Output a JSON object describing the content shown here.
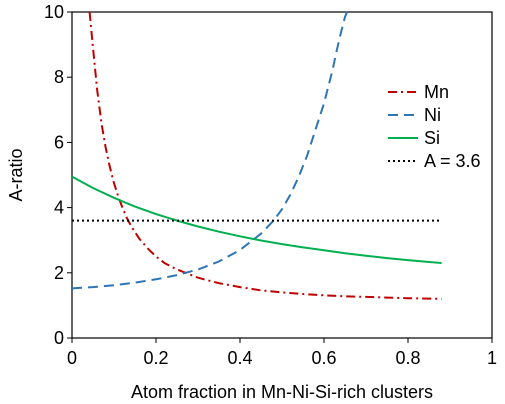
{
  "chart_data": {
    "type": "line",
    "title": "",
    "xlabel": "Atom fraction in Mn-Ni-Si-rich clusters",
    "ylabel": "A-ratio",
    "xlim": [
      0,
      1
    ],
    "ylim": [
      0,
      10
    ],
    "xticks": [
      0,
      0.2,
      0.4,
      0.6,
      0.8,
      1
    ],
    "xtick_labels": [
      "0",
      "0.2",
      "0.4",
      "0.6",
      "0.8",
      "1"
    ],
    "yticks": [
      0,
      2,
      4,
      6,
      8,
      10
    ],
    "ytick_labels": [
      "0",
      "2",
      "4",
      "6",
      "8",
      "10"
    ],
    "grid": false,
    "legend_position": "right",
    "series": [
      {
        "name": "Mn",
        "color": "#C00000",
        "dash": "dash-dot",
        "x": [
          0.042,
          0.05,
          0.06,
          0.07,
          0.08,
          0.09,
          0.1,
          0.11,
          0.12,
          0.13,
          0.14,
          0.16,
          0.18,
          0.2,
          0.22,
          0.25,
          0.28,
          0.3,
          0.35,
          0.4,
          0.45,
          0.5,
          0.55,
          0.6,
          0.65,
          0.7,
          0.75,
          0.8,
          0.85,
          0.88
        ],
        "y": [
          10.0,
          8.9,
          7.6,
          6.6,
          5.85,
          5.25,
          4.75,
          4.35,
          4.0,
          3.7,
          3.45,
          3.05,
          2.75,
          2.5,
          2.3,
          2.1,
          1.95,
          1.85,
          1.68,
          1.56,
          1.46,
          1.4,
          1.35,
          1.31,
          1.28,
          1.26,
          1.24,
          1.22,
          1.21,
          1.2
        ]
      },
      {
        "name": "Ni",
        "color": "#2E75B6",
        "dash": "dash",
        "x": [
          0.0,
          0.05,
          0.1,
          0.15,
          0.2,
          0.25,
          0.3,
          0.35,
          0.4,
          0.45,
          0.48,
          0.5,
          0.52,
          0.54,
          0.56,
          0.58,
          0.6,
          0.62,
          0.63,
          0.64,
          0.65,
          0.655
        ],
        "y": [
          1.52,
          1.56,
          1.62,
          1.7,
          1.8,
          1.93,
          2.1,
          2.35,
          2.7,
          3.2,
          3.6,
          3.95,
          4.4,
          4.95,
          5.6,
          6.4,
          7.2,
          8.2,
          8.8,
          9.35,
          9.85,
          10.0
        ]
      },
      {
        "name": "Si",
        "color": "#00B050",
        "dash": "solid",
        "x": [
          0.0,
          0.05,
          0.1,
          0.15,
          0.2,
          0.25,
          0.3,
          0.35,
          0.4,
          0.45,
          0.5,
          0.55,
          0.6,
          0.65,
          0.7,
          0.75,
          0.8,
          0.85,
          0.88
        ],
        "y": [
          4.95,
          4.6,
          4.3,
          4.03,
          3.8,
          3.6,
          3.42,
          3.26,
          3.12,
          2.99,
          2.88,
          2.78,
          2.69,
          2.6,
          2.52,
          2.45,
          2.39,
          2.33,
          2.3
        ]
      },
      {
        "name": "A = 3.6",
        "color": "#000000",
        "dash": "dot",
        "x": [
          0.0,
          0.88
        ],
        "y": [
          3.6,
          3.6
        ]
      }
    ]
  }
}
